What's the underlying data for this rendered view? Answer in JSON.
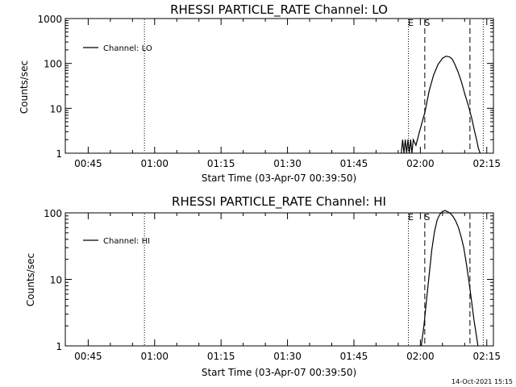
{
  "footer": {
    "timestamp": "14-Oct-2021 15:15"
  },
  "chart_data": [
    {
      "type": "line",
      "title": "RHESSI PARTICLE_RATE Channel: LO",
      "xlabel": "Start Time (03-Apr-07 00:39:50)",
      "ylabel": "Counts/sec",
      "xscale": "linear",
      "yscale": "log",
      "xlim_min": [
        39.83,
        136.5
      ],
      "ylim": [
        1,
        1000
      ],
      "xticks_min": [
        45,
        60,
        75,
        90,
        105,
        120,
        135
      ],
      "xtick_labels": [
        "00:45",
        "01:00",
        "01:15",
        "01:30",
        "01:45",
        "02:00",
        "02:15"
      ],
      "yticks": [
        1,
        10,
        100,
        1000
      ],
      "ytick_labels": [
        "1",
        "10",
        "100",
        "1000"
      ],
      "legend": {
        "label": "Channel: LO",
        "position": "top-left"
      },
      "markers": [
        {
          "label": "",
          "x_min": 57.7,
          "style": "dotted"
        },
        {
          "label": "E",
          "x_min": 117.3,
          "style": "dotted"
        },
        {
          "label": "S",
          "x_min": 121.0,
          "style": "dashed"
        },
        {
          "label": "",
          "x_min": 131.2,
          "style": "dashed"
        },
        {
          "label": "",
          "x_min": 134.2,
          "style": "dotted"
        }
      ],
      "series": [
        {
          "name": "Channel: LO",
          "x_min": [
            115.7,
            116.0,
            116.3,
            116.6,
            116.9,
            117.2,
            117.5,
            117.8,
            118.1,
            118.4,
            119.0,
            119.8,
            121.0,
            122.0,
            123.0,
            124.0,
            125.0,
            125.8,
            126.6,
            127.2,
            127.8,
            128.5,
            129.3,
            130.1,
            130.9,
            131.6,
            132.2,
            132.7,
            133.1,
            133.5
          ],
          "y": [
            1,
            2,
            1,
            2,
            1,
            2,
            1,
            2,
            1,
            2,
            1.5,
            3,
            8,
            25,
            55,
            95,
            130,
            145,
            140,
            125,
            95,
            65,
            38,
            20,
            11,
            6,
            3.2,
            2,
            1.3,
            1
          ]
        }
      ]
    },
    {
      "type": "line",
      "title": "RHESSI PARTICLE_RATE Channel: HI",
      "xlabel": "Start Time (03-Apr-07 00:39:50)",
      "ylabel": "Counts/sec",
      "xscale": "linear",
      "yscale": "log",
      "xlim_min": [
        39.83,
        136.5
      ],
      "ylim": [
        1,
        100
      ],
      "xticks_min": [
        45,
        60,
        75,
        90,
        105,
        120,
        135
      ],
      "xtick_labels": [
        "00:45",
        "01:00",
        "01:15",
        "01:30",
        "01:45",
        "02:00",
        "02:15"
      ],
      "yticks": [
        1,
        10,
        100
      ],
      "ytick_labels": [
        "1",
        "10",
        "100"
      ],
      "legend": {
        "label": "Channel: HI",
        "position": "top-left"
      },
      "markers": [
        {
          "label": "",
          "x_min": 57.7,
          "style": "dotted"
        },
        {
          "label": "E",
          "x_min": 117.3,
          "style": "dotted"
        },
        {
          "label": "S",
          "x_min": 121.0,
          "style": "dashed"
        },
        {
          "label": "",
          "x_min": 131.2,
          "style": "dashed"
        },
        {
          "label": "",
          "x_min": 134.2,
          "style": "dotted"
        }
      ],
      "series": [
        {
          "name": "Channel: HI",
          "x_min": [
            120.2,
            120.8,
            121.4,
            122.0,
            122.6,
            123.2,
            123.8,
            124.4,
            125.0,
            125.6,
            126.2,
            126.8,
            127.4,
            128.0,
            128.6,
            129.2,
            129.8,
            130.4,
            131.0,
            131.6,
            132.1,
            132.6,
            133.0
          ],
          "y": [
            1,
            2,
            5,
            12,
            28,
            52,
            78,
            95,
            105,
            108,
            104,
            98,
            88,
            75,
            60,
            44,
            30,
            17,
            9,
            4.5,
            2.5,
            1.5,
            1
          ]
        }
      ]
    }
  ]
}
